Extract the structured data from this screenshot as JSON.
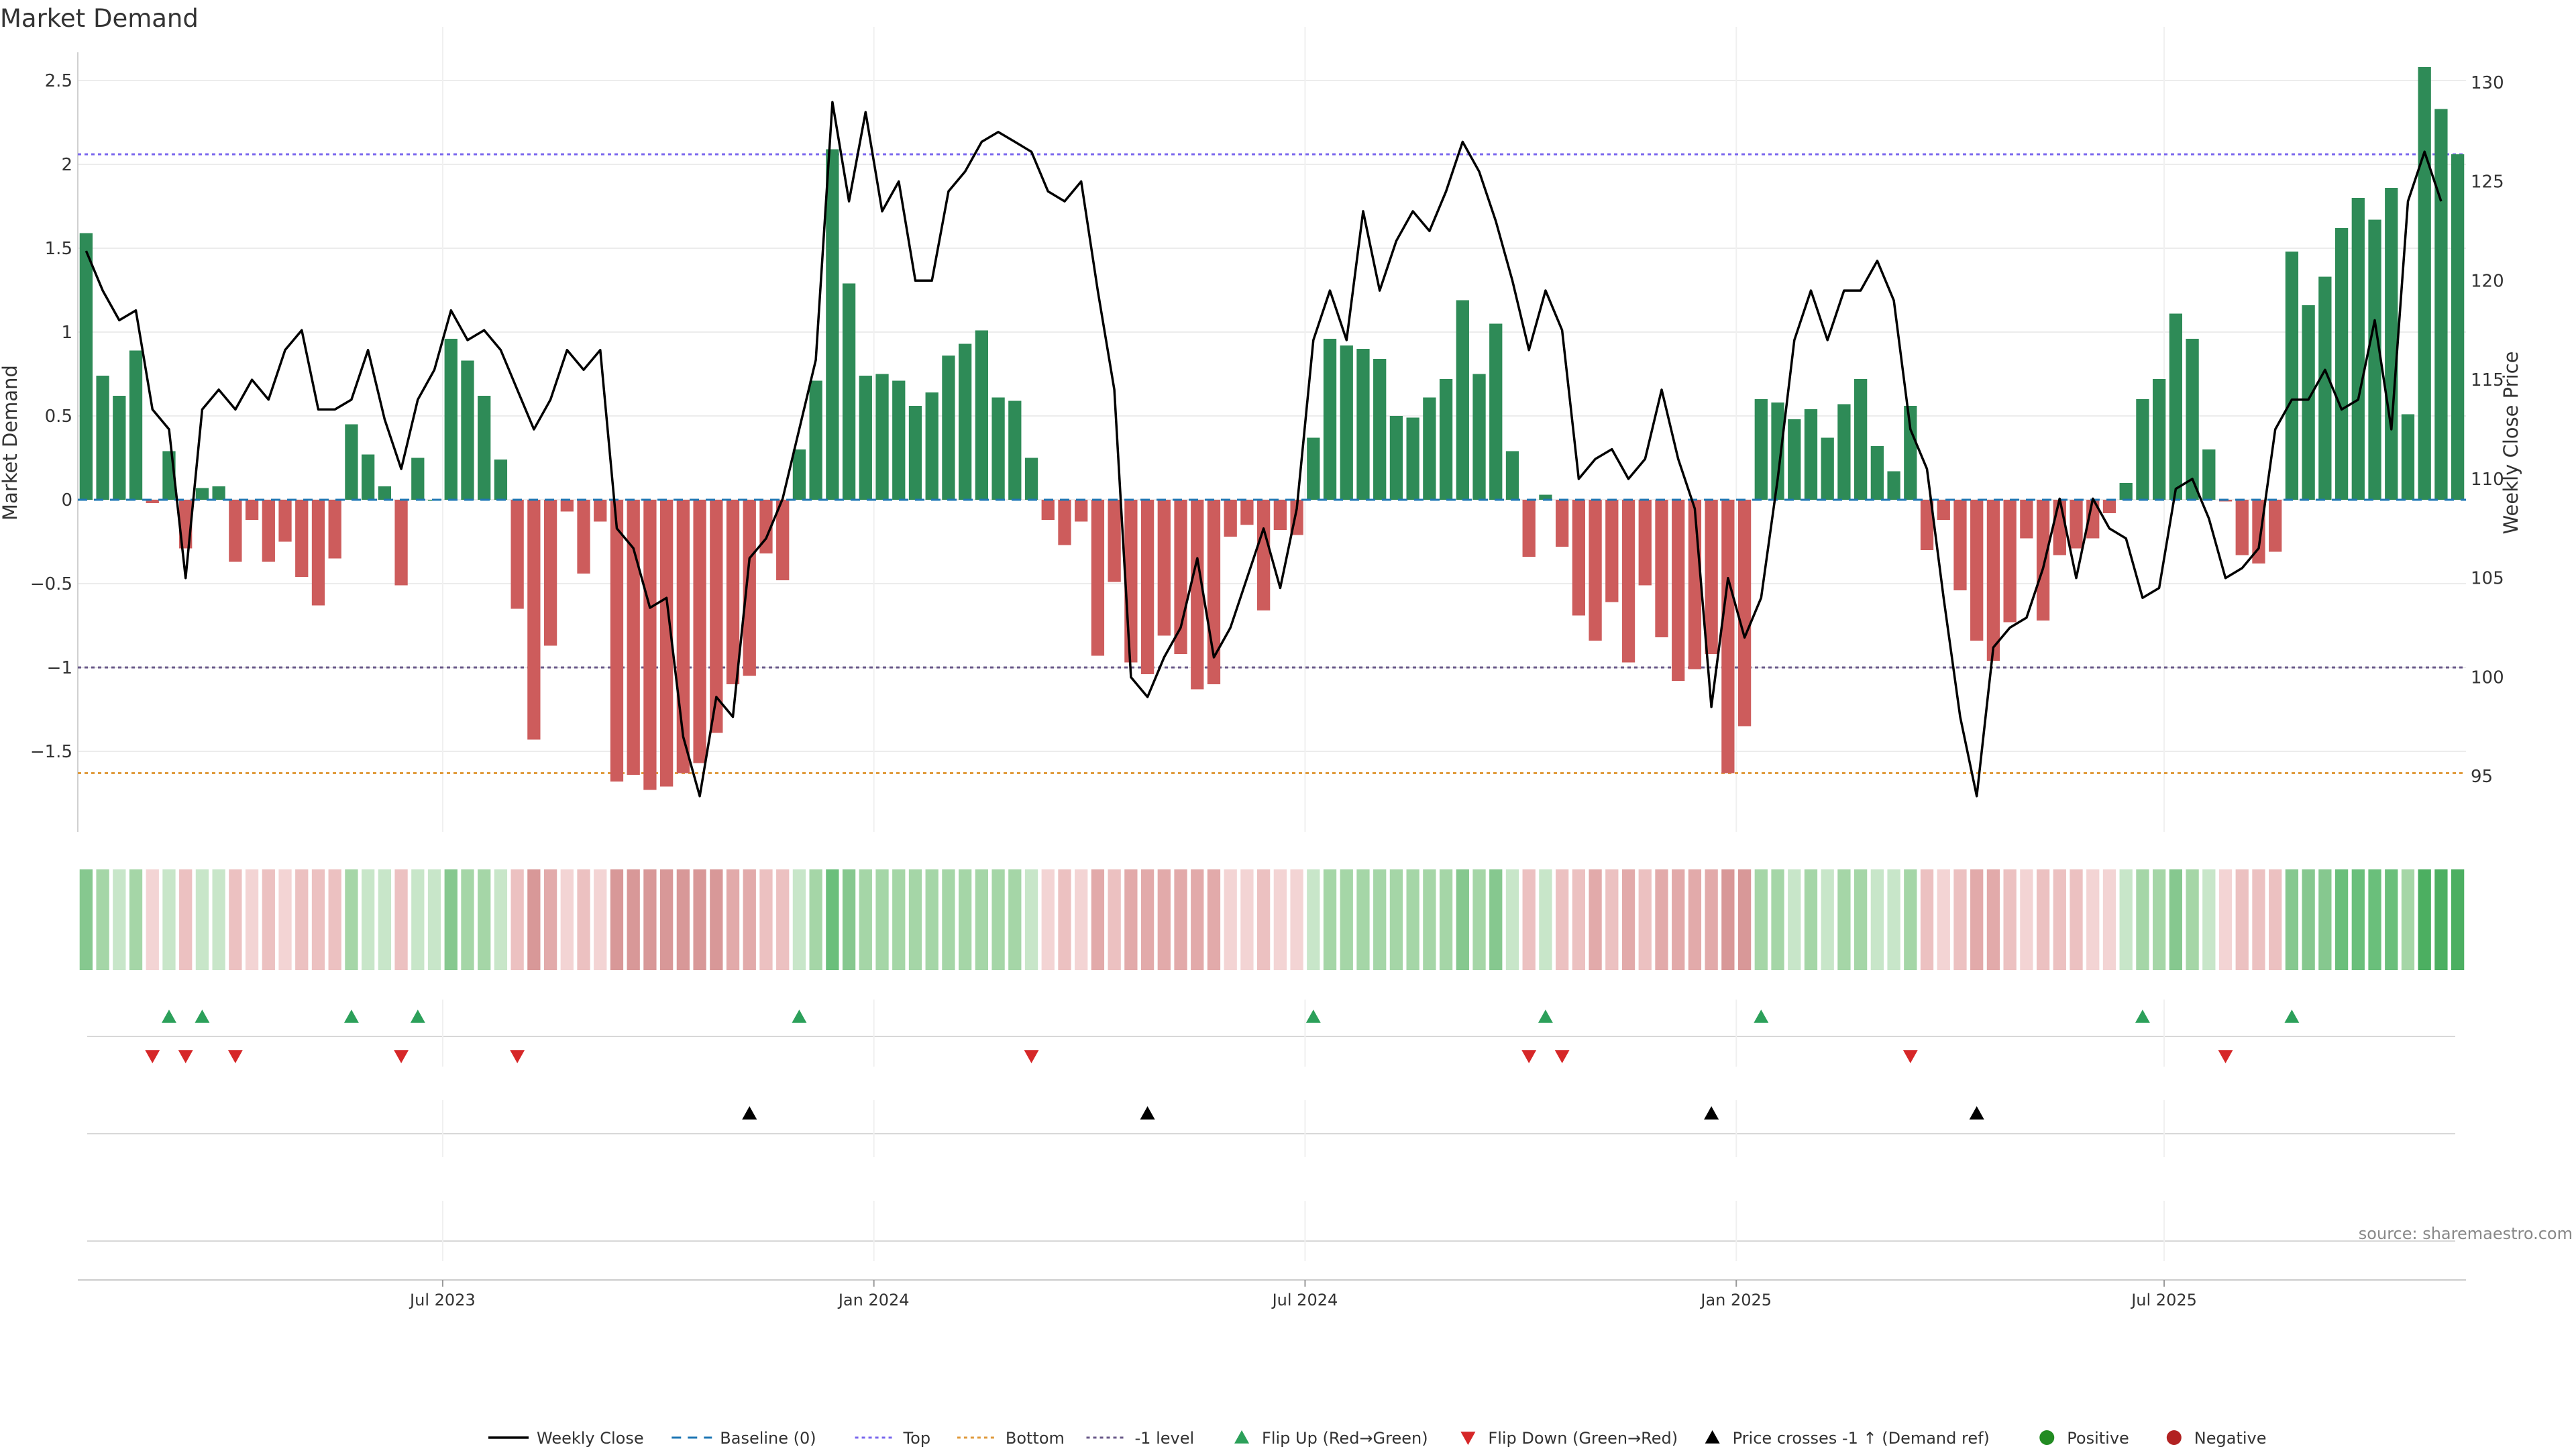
{
  "chart_data": {
    "type": "bar",
    "title": "Market Demand",
    "ylabel": "Market Demand",
    "y2label": "Weekly Close Price",
    "ylim": [
      -1.98,
      2.82
    ],
    "y2lim": [
      92.2,
      132.8
    ],
    "yticks": [
      2.5,
      2,
      1.5,
      1,
      0.5,
      0,
      -0.5,
      -1,
      -1.5
    ],
    "yticklabels": [
      "2.5",
      "2",
      "1.5",
      "1",
      "0.5",
      "0",
      "−0.5",
      "−1",
      "−1.5"
    ],
    "y2ticks": [
      130,
      125,
      120,
      115,
      110,
      105,
      100,
      95
    ],
    "y2ticklabels": [
      "130",
      "125",
      "120",
      "115",
      "110",
      "105",
      "100",
      "95"
    ],
    "xticks": [
      {
        "label": "Jul 2023",
        "index": 21.5
      },
      {
        "label": "Jan 2024",
        "index": 47.5
      },
      {
        "label": "Jul 2024",
        "index": 73.5
      },
      {
        "label": "Jan 2025",
        "index": 99.5
      },
      {
        "label": "Jul 2025",
        "index": 125.3
      }
    ],
    "reference_lines": {
      "top": 2.06,
      "bottom": -1.63,
      "minus_one": -1.0,
      "baseline": 0
    },
    "series": [
      {
        "name": "Market Demand",
        "kind": "bar",
        "values": [
          1.59,
          0.74,
          0.62,
          0.89,
          -0.02,
          0.29,
          -0.29,
          0.07,
          0.08,
          -0.37,
          -0.12,
          -0.37,
          -0.25,
          -0.46,
          -0.63,
          -0.35,
          0.45,
          0.27,
          0.08,
          -0.51,
          0.25,
          0.0,
          0.96,
          0.83,
          0.62,
          0.24,
          -0.65,
          -1.43,
          -0.87,
          -0.07,
          -0.44,
          -0.13,
          -1.68,
          -1.64,
          -1.73,
          -1.71,
          -1.63,
          -1.57,
          -1.39,
          -1.1,
          -1.05,
          -0.32,
          -0.48,
          0.3,
          0.71,
          2.09,
          1.29,
          0.74,
          0.75,
          0.71,
          0.56,
          0.64,
          0.86,
          0.93,
          1.01,
          0.61,
          0.59,
          0.25,
          -0.12,
          -0.27,
          -0.13,
          -0.93,
          -0.49,
          -0.97,
          -1.04,
          -0.81,
          -0.92,
          -1.13,
          -1.1,
          -0.22,
          -0.15,
          -0.66,
          -0.18,
          -0.21,
          0.37,
          0.96,
          0.92,
          0.9,
          0.84,
          0.5,
          0.49,
          0.61,
          0.72,
          1.19,
          0.75,
          1.05,
          0.29,
          -0.34,
          0.03,
          -0.28,
          -0.69,
          -0.84,
          -0.61,
          -0.97,
          -0.51,
          -0.82,
          -1.08,
          -1.01,
          -0.92,
          -1.63,
          -1.35,
          0.6,
          0.58,
          0.48,
          0.54,
          0.37,
          0.57,
          0.72,
          0.32,
          0.17,
          0.56,
          -0.3,
          -0.12,
          -0.54,
          -0.84,
          -0.96,
          -0.73,
          -0.23,
          -0.72,
          -0.33,
          -0.29,
          -0.23,
          -0.08,
          0.1,
          0.6,
          0.72,
          1.11,
          0.96,
          0.3,
          -0.01,
          -0.33,
          -0.38,
          -0.31,
          1.48,
          1.16,
          1.33,
          1.62,
          1.8,
          1.67,
          1.86,
          0.51,
          2.58,
          2.33,
          2.06
        ]
      },
      {
        "name": "Weekly Close",
        "kind": "line",
        "values": [
          121.5,
          119.5,
          118,
          118.5,
          113.5,
          112.5,
          105,
          113.5,
          114.5,
          113.5,
          115,
          114,
          116.5,
          117.5,
          113.5,
          113.5,
          114,
          116.5,
          113,
          110.5,
          114,
          115.5,
          118.5,
          117,
          117.5,
          116.5,
          114.5,
          112.5,
          114,
          116.5,
          115.5,
          116.5,
          107.5,
          106.5,
          103.5,
          104,
          97,
          94,
          99,
          98,
          106,
          107,
          109,
          112.5,
          116,
          129,
          124,
          128.5,
          123.5,
          125,
          120,
          120,
          124.5,
          125.5,
          127,
          127.5,
          127,
          126.5,
          124.5,
          124,
          125,
          119.5,
          114.5,
          100,
          99,
          101,
          102.5,
          106,
          101,
          102.5,
          105,
          107.5,
          104.5,
          108.5,
          117,
          119.5,
          117,
          123.5,
          119.5,
          122,
          123.5,
          122.5,
          124.5,
          127,
          125.5,
          123,
          120,
          116.5,
          119.5,
          117.5,
          110,
          111,
          111.5,
          110,
          111,
          114.5,
          111,
          108.5,
          98.5,
          105,
          102,
          104,
          110,
          117,
          119.5,
          117,
          119.5,
          119.5,
          121,
          119,
          112.5,
          110.5,
          104,
          98,
          94,
          101.5,
          102.5,
          103,
          105.5,
          109,
          105,
          109,
          107.5,
          107,
          104,
          104.5,
          109.5,
          110,
          108,
          105,
          105.5,
          106.5,
          112.5,
          114,
          114,
          115.5,
          113.5,
          114,
          118,
          112.5,
          124,
          126.5,
          124
        ]
      }
    ],
    "heat_strip": [
      3,
      2,
      1,
      2,
      0,
      1,
      0,
      1,
      1,
      0,
      0,
      0,
      0,
      0,
      0,
      0,
      2,
      1,
      1,
      0,
      1,
      1,
      3,
      2,
      2,
      1,
      0,
      0,
      0,
      0,
      0,
      0,
      0,
      0,
      0,
      0,
      0,
      0,
      0,
      0,
      0,
      0,
      0,
      1,
      2,
      4,
      3,
      2,
      2,
      2,
      2,
      2,
      2,
      2,
      2,
      2,
      2,
      1,
      0,
      0,
      0,
      0,
      0,
      0,
      0,
      0,
      0,
      0,
      0,
      0,
      0,
      0,
      0,
      0,
      1,
      2,
      2,
      2,
      2,
      2,
      2,
      2,
      2,
      3,
      2,
      3,
      1,
      0,
      1,
      0,
      0,
      0,
      0,
      0,
      0,
      0,
      0,
      0,
      0,
      0,
      0,
      2,
      2,
      1,
      2,
      1,
      2,
      2,
      1,
      1,
      2,
      0,
      0,
      0,
      0,
      0,
      0,
      0,
      0,
      0,
      0,
      0,
      0,
      1,
      2,
      2,
      3,
      2,
      1,
      0,
      0,
      0,
      0,
      3,
      3,
      3,
      4,
      4,
      4,
      4,
      2,
      5,
      5,
      5
    ],
    "flip_up_indices": [
      5,
      7,
      16,
      20,
      43,
      74,
      88,
      101,
      124,
      133
    ],
    "flip_down_indices": [
      4,
      6,
      9,
      19,
      26,
      57,
      87,
      89,
      110,
      129
    ],
    "price_cross_indices": [
      40,
      64,
      98,
      114
    ],
    "legend": [
      "Weekly Close",
      "Baseline (0)",
      "Top",
      "Bottom",
      "-1 level",
      "Flip Up (Red→Green)",
      "Flip Down (Green→Red)",
      "Price crosses -1 ↑ (Demand ref)",
      "Positive",
      "Negative"
    ],
    "source": "source: sharemaestro.com",
    "colors": {
      "positive": "#2e8b57",
      "negative": "#cd5c5c",
      "line": "#000000",
      "top": "#7b68ee",
      "bottom": "#e09b3d",
      "minus_one": "#6a5a8a",
      "baseline": "#1f77b4",
      "flip_up": "#2ca05a",
      "flip_down": "#d62728",
      "legend_positive": "#228b22",
      "legend_negative": "#b22222"
    }
  }
}
